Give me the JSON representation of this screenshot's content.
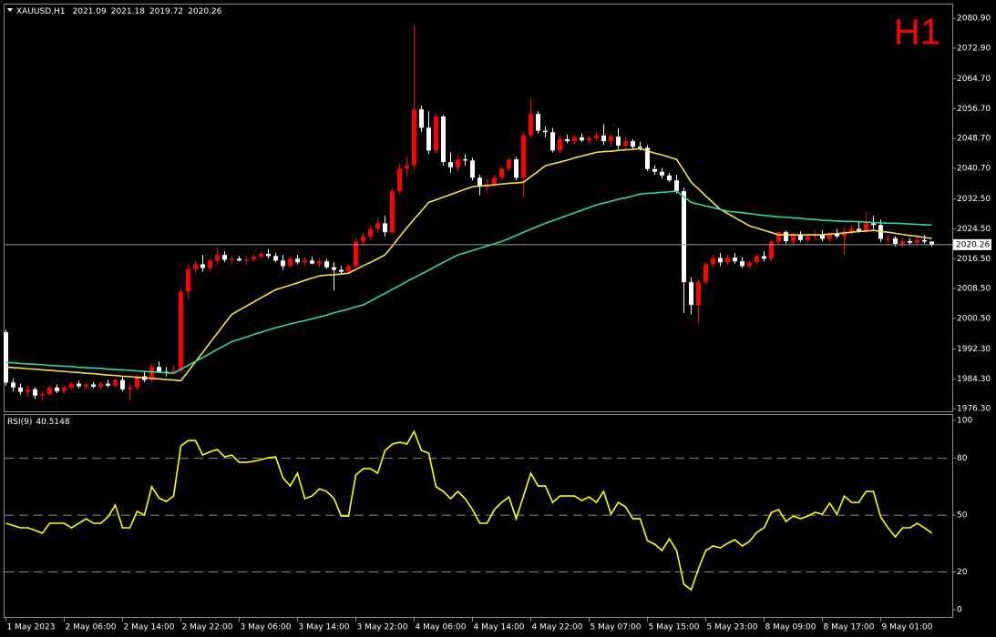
{
  "chart_data": [
    {
      "type": "candlestick",
      "title": "XAUUSD,H1",
      "timeframe": "H1",
      "up_color": "#ff0000",
      "down_color": "#ffffff",
      "categories": [
        "1 May 2023",
        null,
        null,
        null,
        null,
        null,
        null,
        null,
        "2 May 06:00",
        null,
        null,
        null,
        null,
        null,
        null,
        null,
        "2 May 14:00",
        null,
        null,
        null,
        null,
        null,
        null,
        null,
        "2 May 22:00",
        null,
        null,
        null,
        null,
        null,
        null,
        null,
        "3 May 06:00",
        null,
        null,
        null,
        null,
        null,
        null,
        null,
        "3 May 14:00",
        null,
        null,
        null,
        null,
        null,
        null,
        null,
        "3 May 22:00",
        null,
        null,
        null,
        null,
        null,
        null,
        null,
        "4 May 06:00",
        null,
        null,
        null,
        null,
        null,
        null,
        null,
        "4 May 14:00",
        null,
        null,
        null,
        null,
        null,
        null,
        null,
        "4 May 22:00",
        null,
        null,
        null,
        null,
        null,
        null,
        null,
        "5 May 07:00",
        null,
        null,
        null,
        null,
        null,
        null,
        null,
        "5 May 15:00",
        null,
        null,
        null,
        null,
        null,
        null,
        null,
        "5 May 23:00",
        null,
        null,
        null,
        null,
        null,
        null,
        null,
        "8 May 09:00",
        null,
        null,
        null,
        null,
        null,
        null,
        null,
        "8 May 17:00",
        null,
        null,
        null,
        null,
        null,
        null,
        null,
        "9 May 01:00",
        null,
        null,
        null,
        null,
        null,
        null,
        null
      ],
      "open": [
        1996.8,
        1983.3,
        1982.0,
        1980.8,
        1981.5,
        1979.8,
        1980.2,
        1982.0,
        1981.0,
        1982.0,
        1983.0,
        1982.3,
        1982.8,
        1982.2,
        1983.0,
        1982.5,
        1984.0,
        1981.5,
        1982.0,
        1985.0,
        1984.0,
        1987.5,
        1986.2,
        1986.0,
        1986.5,
        2007.7,
        2013.8,
        2015.0,
        2014.0,
        2016.0,
        2017.5,
        2016.2,
        2016.5,
        2016.0,
        2016.3,
        2017.0,
        2017.8,
        2017.2,
        2016.0,
        2014.5,
        2016.5,
        2015.5,
        2016.0,
        2015.2,
        2015.8,
        2014.2,
        2013.5,
        2013.0,
        2014.5,
        2021.1,
        2022.4,
        2024.5,
        2026.0,
        2023.6,
        2034.6,
        2040.7,
        2041.5,
        2056.5,
        2051.6,
        2045.5,
        2054.6,
        2042.4,
        2041.0,
        2043.1,
        2042.8,
        2038.2,
        2035.8,
        2036.5,
        2038.2,
        2040.7,
        2043.1,
        2038.2,
        2049.6,
        2055.3,
        2050.8,
        2050.4,
        2045.5,
        2048.5,
        2048.0,
        2049.0,
        2048.2,
        2048.8,
        2049.5,
        2048.0,
        2049.2,
        2046.8,
        2048.0,
        2046.5,
        2046.2,
        2040.5,
        2039.8,
        2038.8,
        2037.5,
        2034.6,
        2010.2,
        2004.1,
        2010.2,
        2015.0,
        2016.7,
        2015.5,
        2016.8,
        2015.8,
        2014.5,
        2015.5,
        2017.2,
        2016.5,
        2021.1,
        2023.6,
        2021.2,
        2022.8,
        2021.5,
        2022.5,
        2023.0,
        2021.8,
        2023.2,
        2022.5,
        2023.8,
        2024.5,
        2024.0,
        2026.0,
        2025.5,
        2021.8,
        2022.0,
        2020.5,
        2021.2,
        2020.8,
        2021.5,
        2021.09
      ],
      "high": [
        1997.5,
        1984.5,
        1983.0,
        1982.5,
        1982.0,
        1981.0,
        1982.5,
        1982.8,
        1982.5,
        1983.5,
        1983.8,
        1983.2,
        1983.5,
        1983.5,
        1984.0,
        1984.5,
        1985.0,
        1983.0,
        1985.5,
        1986.5,
        1988.5,
        1989.0,
        1987.5,
        1988.0,
        2008.5,
        2015.0,
        2016.0,
        2017.5,
        2016.5,
        2019.5,
        2018.5,
        2017.0,
        2017.2,
        2017.0,
        2017.8,
        2018.5,
        2019.0,
        2018.0,
        2017.5,
        2017.0,
        2017.5,
        2016.8,
        2017.0,
        2016.5,
        2016.5,
        2015.5,
        2014.5,
        2015.0,
        2022.0,
        2023.5,
        2025.5,
        2027.5,
        2028.0,
        2035.5,
        2042.0,
        2043.5,
        2079.2,
        2057.5,
        2056.0,
        2055.5,
        2055.0,
        2045.0,
        2044.0,
        2044.5,
        2043.5,
        2039.0,
        2038.0,
        2039.0,
        2041.0,
        2043.5,
        2043.8,
        2050.5,
        2059.4,
        2056.0,
        2052.0,
        2051.5,
        2049.5,
        2049.8,
        2049.5,
        2050.0,
        2049.5,
        2050.5,
        2052.5,
        2049.8,
        2051.5,
        2049.0,
        2048.5,
        2047.8,
        2047.0,
        2041.5,
        2040.8,
        2039.5,
        2039.0,
        2035.5,
        2011.5,
        2010.8,
        2015.5,
        2017.5,
        2018.0,
        2017.5,
        2018.0,
        2017.0,
        2016.0,
        2017.8,
        2018.5,
        2021.5,
        2023.8,
        2024.0,
        2023.5,
        2023.8,
        2023.0,
        2024.0,
        2024.2,
        2023.5,
        2024.5,
        2025.0,
        2025.5,
        2026.5,
        2029.0,
        2028.0,
        2027.0,
        2023.0,
        2022.5,
        2021.8,
        2022.0,
        2022.5,
        2022.8,
        2021.18
      ],
      "low": [
        1982.5,
        1981.0,
        1980.0,
        1979.5,
        1979.0,
        1978.5,
        1979.8,
        1980.5,
        1980.2,
        1981.5,
        1981.8,
        1981.5,
        1981.8,
        1981.5,
        1982.0,
        1982.0,
        1981.0,
        1978.5,
        1981.5,
        1983.5,
        1983.5,
        1985.8,
        1985.0,
        1985.5,
        1985.8,
        2005.5,
        2012.5,
        2013.0,
        2013.2,
        2015.0,
        2015.5,
        2015.0,
        2015.8,
        2015.0,
        2015.8,
        2016.2,
        2016.5,
        2015.5,
        2013.5,
        2014.0,
        2015.0,
        2014.5,
        2015.0,
        2014.2,
        2013.8,
        2008.0,
        2012.5,
        2012.5,
        2014.0,
        2020.0,
        2021.5,
        2023.5,
        2022.5,
        2023.0,
        2033.8,
        2038.5,
        2040.5,
        2050.5,
        2044.5,
        2044.8,
        2041.5,
        2039.5,
        2039.8,
        2041.5,
        2037.5,
        2033.5,
        2034.5,
        2035.8,
        2037.5,
        2039.8,
        2037.5,
        2033.0,
        2049.0,
        2050.0,
        2049.0,
        2045.0,
        2044.8,
        2047.5,
        2047.2,
        2047.8,
        2047.5,
        2048.0,
        2047.0,
        2046.5,
        2045.8,
        2045.5,
        2045.8,
        2045.5,
        2040.0,
        2039.0,
        2038.0,
        2037.0,
        2034.0,
        2002.0,
        2001.6,
        1999.2,
        2009.5,
        2014.0,
        2014.5,
        2014.8,
        2015.2,
        2014.0,
        2013.8,
        2015.0,
        2015.8,
        2016.0,
        2020.5,
        2020.5,
        2020.0,
        2021.0,
        2020.8,
        2021.5,
        2021.2,
        2021.0,
        2022.0,
        2017.5,
        2022.8,
        2023.5,
        2023.5,
        2024.5,
        2021.0,
        2020.5,
        2019.8,
        2019.5,
        2020.2,
        2020.2,
        2020.5,
        2019.72
      ],
      "close": [
        1983.3,
        1982.0,
        1980.8,
        1981.5,
        1979.8,
        1980.2,
        1982.0,
        1981.0,
        1982.0,
        1983.0,
        1982.3,
        1982.8,
        1982.2,
        1983.0,
        1982.5,
        1984.0,
        1981.5,
        1982.0,
        1985.0,
        1984.0,
        1987.5,
        1986.2,
        1986.0,
        1986.5,
        2007.7,
        2013.8,
        2015.0,
        2014.0,
        2016.0,
        2017.5,
        2016.2,
        2016.5,
        2016.0,
        2016.3,
        2017.0,
        2017.8,
        2017.2,
        2016.0,
        2014.5,
        2016.5,
        2015.5,
        2016.0,
        2015.2,
        2015.8,
        2014.2,
        2013.5,
        2013.0,
        2014.5,
        2021.1,
        2022.4,
        2024.5,
        2026.0,
        2023.6,
        2034.6,
        2040.7,
        2041.5,
        2056.5,
        2051.6,
        2045.5,
        2054.6,
        2042.4,
        2041.0,
        2043.1,
        2042.8,
        2038.2,
        2035.8,
        2036.5,
        2038.2,
        2040.7,
        2043.1,
        2038.2,
        2049.6,
        2055.3,
        2050.8,
        2050.4,
        2045.5,
        2048.5,
        2048.0,
        2049.0,
        2048.2,
        2048.8,
        2049.5,
        2048.0,
        2049.2,
        2046.8,
        2048.0,
        2046.5,
        2046.2,
        2040.5,
        2039.8,
        2038.8,
        2037.5,
        2034.6,
        2010.2,
        2004.1,
        2010.2,
        2015.0,
        2016.7,
        2015.5,
        2016.8,
        2015.8,
        2014.5,
        2015.5,
        2017.2,
        2016.5,
        2021.1,
        2023.6,
        2021.2,
        2022.8,
        2021.5,
        2022.5,
        2023.0,
        2021.8,
        2023.2,
        2022.5,
        2023.8,
        2024.5,
        2024.0,
        2026.0,
        2025.5,
        2021.8,
        2022.0,
        2020.5,
        2021.2,
        2020.8,
        2021.5,
        2021.1,
        2020.26
      ],
      "series": [
        {
          "color": "#f5e04a",
          "values": [
            1987.5,
            1987.3,
            1987.2,
            1987.0,
            1986.9,
            1986.7,
            1986.6,
            1986.4,
            1986.3,
            1986.1,
            1986.0,
            1985.8,
            1985.7,
            1985.5,
            1985.3,
            1985.2,
            1985.0,
            1984.9,
            1984.7,
            1984.6,
            1984.4,
            1984.3,
            1984.1,
            1984.0,
            1983.8,
            1986.3,
            1988.9,
            1991.4,
            1994.0,
            1996.5,
            1999.1,
            2001.6,
            2002.7,
            2003.8,
            2004.9,
            2006.0,
            2007.1,
            2008.2,
            2008.8,
            2009.4,
            2010.0,
            2010.7,
            2011.3,
            2011.9,
            2012.1,
            2012.2,
            2012.4,
            2012.6,
            2013.6,
            2014.6,
            2015.5,
            2016.5,
            2017.5,
            2019.9,
            2022.4,
            2024.8,
            2027.1,
            2029.3,
            2031.6,
            2032.3,
            2033.0,
            2033.7,
            2034.4,
            2035.1,
            2035.8,
            2036.0,
            2036.1,
            2036.3,
            2036.5,
            2036.7,
            2036.8,
            2037.0,
            2038.5,
            2039.9,
            2041.4,
            2041.9,
            2042.4,
            2042.9,
            2043.5,
            2044.0,
            2044.5,
            2045.0,
            2045.2,
            2045.3,
            2045.5,
            2045.7,
            2045.8,
            2046.0,
            2045.4,
            2044.8,
            2044.3,
            2043.7,
            2043.1,
            2040.1,
            2037.0,
            2035.2,
            2033.3,
            2031.5,
            2029.7,
            2028.6,
            2027.5,
            2026.4,
            2025.3,
            2024.7,
            2024.1,
            2023.5,
            2022.9,
            2022.9,
            2022.9,
            2022.9,
            2022.9,
            2022.9,
            2022.9,
            2023.1,
            2023.2,
            2023.4,
            2023.6,
            2023.8,
            2023.9,
            2024.1,
            2023.8,
            2023.6,
            2023.3,
            2023.0,
            2022.7,
            2022.5,
            2022.2,
            2021.9
          ]
        },
        {
          "color": "#2bd9a0",
          "values": [
            1988.7,
            1988.6,
            1988.4,
            1988.3,
            1988.2,
            1988.1,
            1987.9,
            1987.8,
            1987.7,
            1987.6,
            1987.4,
            1987.3,
            1987.2,
            1987.1,
            1986.9,
            1986.8,
            1986.7,
            1986.6,
            1986.4,
            1986.3,
            1986.2,
            1986.1,
            1985.9,
            1985.8,
            1986.9,
            1987.9,
            1989.0,
            1990.0,
            1991.1,
            1992.2,
            1993.2,
            1994.3,
            1994.9,
            1995.5,
            1996.2,
            1996.8,
            1997.4,
            1998.0,
            1998.5,
            1999.0,
            1999.5,
            1999.9,
            2000.4,
            2000.9,
            2001.4,
            2002.0,
            2002.5,
            2003.0,
            2003.6,
            2004.1,
            2005.1,
            2006.2,
            2007.2,
            2008.3,
            2009.3,
            2010.4,
            2011.4,
            2012.4,
            2013.4,
            2014.5,
            2015.5,
            2016.5,
            2017.5,
            2018.1,
            2018.7,
            2019.3,
            2019.9,
            2020.5,
            2021.1,
            2021.9,
            2022.7,
            2023.6,
            2024.4,
            2025.2,
            2026.0,
            2026.7,
            2027.4,
            2028.1,
            2028.8,
            2029.5,
            2030.2,
            2030.9,
            2031.4,
            2031.9,
            2032.4,
            2032.8,
            2033.3,
            2033.8,
            2034.0,
            2034.1,
            2034.3,
            2034.4,
            2034.6,
            2033.1,
            2031.6,
            2031.1,
            2030.6,
            2030.2,
            2029.7,
            2029.2,
            2029.0,
            2028.8,
            2028.6,
            2028.3,
            2028.1,
            2027.9,
            2027.7,
            2027.6,
            2027.4,
            2027.3,
            2027.1,
            2027.0,
            2026.8,
            2026.7,
            2026.6,
            2026.5,
            2026.5,
            2026.4,
            2026.3,
            2026.2,
            2026.1,
            2026.0,
            2026.0,
            2025.9,
            2025.8,
            2025.7,
            2025.6,
            2025.5
          ]
        }
      ],
      "ylim": [
        1975.6,
        2084.6
      ],
      "yticks": [
        {
          "value": 2080.9,
          "label": "2080.90"
        },
        {
          "value": 2072.9,
          "label": "2072.90"
        },
        {
          "value": 2064.7,
          "label": "2064.70"
        },
        {
          "value": 2056.7,
          "label": "2056.70"
        },
        {
          "value": 2048.7,
          "label": "2048.70"
        },
        {
          "value": 2040.7,
          "label": "2040.70"
        },
        {
          "value": 2032.5,
          "label": "2032.50"
        },
        {
          "value": 2024.5,
          "label": "2024.50"
        },
        {
          "value": 2016.5,
          "label": "2016.50"
        },
        {
          "value": 2008.5,
          "label": "2008.50"
        },
        {
          "value": 2000.5,
          "label": "2000.50"
        },
        {
          "value": 1992.3,
          "label": "1992.30"
        },
        {
          "value": 1984.3,
          "label": "1984.30"
        },
        {
          "value": 1976.3,
          "label": "1976.30"
        }
      ]
    },
    {
      "type": "line",
      "title": "RSI(9)",
      "series": [
        {
          "color": "#ffff00",
          "values": [
            45.7,
            44.5,
            43.3,
            43.3,
            42.0,
            40.4,
            45.7,
            45.7,
            45.7,
            43.3,
            45.7,
            48.1,
            45.7,
            45.7,
            49.0,
            55.3,
            43.3,
            43.3,
            52.0,
            50.0,
            65.0,
            59.0,
            57.2,
            60.1,
            86.5,
            89.4,
            89.4,
            81.7,
            83.5,
            84.6,
            80.8,
            81.7,
            77.9,
            77.9,
            78.4,
            79.3,
            80.3,
            80.8,
            69.7,
            65.4,
            72.1,
            58.7,
            60.1,
            63.9,
            62.5,
            58.7,
            49.5,
            49.5,
            71.2,
            74.5,
            74.5,
            72.1,
            84.1,
            87.5,
            88.5,
            87.5,
            94.2,
            84.1,
            82.7,
            65.0,
            62.5,
            58.7,
            62.5,
            58.7,
            52.9,
            45.7,
            45.7,
            52.9,
            56.7,
            59.6,
            48.1,
            60.1,
            72.1,
            65.4,
            65.4,
            56.7,
            60.1,
            60.1,
            60.1,
            57.7,
            59.6,
            56.7,
            62.5,
            50.5,
            56.7,
            54.3,
            48.1,
            48.1,
            36.5,
            34.6,
            31.3,
            37.5,
            31.3,
            13.5,
            10.6,
            21.6,
            31.3,
            33.7,
            32.7,
            35.1,
            37.0,
            33.7,
            36.1,
            40.9,
            43.3,
            51.4,
            52.9,
            46.6,
            49.5,
            48.1,
            49.5,
            51.4,
            50.5,
            56.3,
            50.5,
            60.1,
            56.7,
            56.7,
            62.5,
            62.5,
            49.0,
            43.3,
            38.5,
            43.3,
            43.3,
            45.7,
            43.3,
            40.5148
          ]
        }
      ],
      "ylim": [
        -3.8,
        102.9
      ],
      "yticks": [
        100,
        80,
        50,
        20,
        0
      ],
      "levels": [
        80,
        50,
        20
      ]
    }
  ]
}
